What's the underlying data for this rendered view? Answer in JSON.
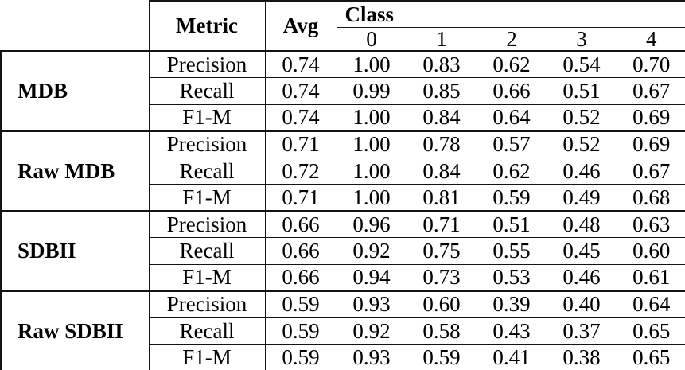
{
  "table": {
    "corner": "",
    "header": {
      "metric": "Metric",
      "avg": "Avg",
      "class_group": "Class",
      "class_labels": [
        "0",
        "1",
        "2",
        "3",
        "4"
      ]
    },
    "groups": [
      {
        "name": "MDB",
        "rows": [
          {
            "metric": "Precision",
            "avg": "0.74",
            "values": [
              "1.00",
              "0.83",
              "0.62",
              "0.54",
              "0.70"
            ]
          },
          {
            "metric": "Recall",
            "avg": "0.74",
            "values": [
              "0.99",
              "0.85",
              "0.66",
              "0.51",
              "0.67"
            ]
          },
          {
            "metric": "F1-M",
            "avg": "0.74",
            "values": [
              "1.00",
              "0.84",
              "0.64",
              "0.52",
              "0.69"
            ]
          }
        ]
      },
      {
        "name": "Raw MDB",
        "rows": [
          {
            "metric": "Precision",
            "avg": "0.71",
            "values": [
              "1.00",
              "0.78",
              "0.57",
              "0.52",
              "0.69"
            ]
          },
          {
            "metric": "Recall",
            "avg": "0.72",
            "values": [
              "1.00",
              "0.84",
              "0.62",
              "0.46",
              "0.67"
            ]
          },
          {
            "metric": "F1-M",
            "avg": "0.71",
            "values": [
              "1.00",
              "0.81",
              "0.59",
              "0.49",
              "0.68"
            ]
          }
        ]
      },
      {
        "name": "SDBII",
        "rows": [
          {
            "metric": "Precision",
            "avg": "0.66",
            "values": [
              "0.96",
              "0.71",
              "0.51",
              "0.48",
              "0.63"
            ]
          },
          {
            "metric": "Recall",
            "avg": "0.66",
            "values": [
              "0.92",
              "0.75",
              "0.55",
              "0.45",
              "0.60"
            ]
          },
          {
            "metric": "F1-M",
            "avg": "0.66",
            "values": [
              "0.94",
              "0.73",
              "0.53",
              "0.46",
              "0.61"
            ]
          }
        ]
      },
      {
        "name": "Raw SDBII",
        "rows": [
          {
            "metric": "Precision",
            "avg": "0.59",
            "values": [
              "0.93",
              "0.60",
              "0.39",
              "0.40",
              "0.64"
            ]
          },
          {
            "metric": "Recall",
            "avg": "0.59",
            "values": [
              "0.92",
              "0.58",
              "0.43",
              "0.37",
              "0.65"
            ]
          },
          {
            "metric": "F1-M",
            "avg": "0.59",
            "values": [
              "0.93",
              "0.59",
              "0.41",
              "0.38",
              "0.65"
            ]
          }
        ]
      }
    ],
    "colors": {
      "text": "#000000",
      "border": "#141414",
      "background": "#ffffff"
    }
  }
}
